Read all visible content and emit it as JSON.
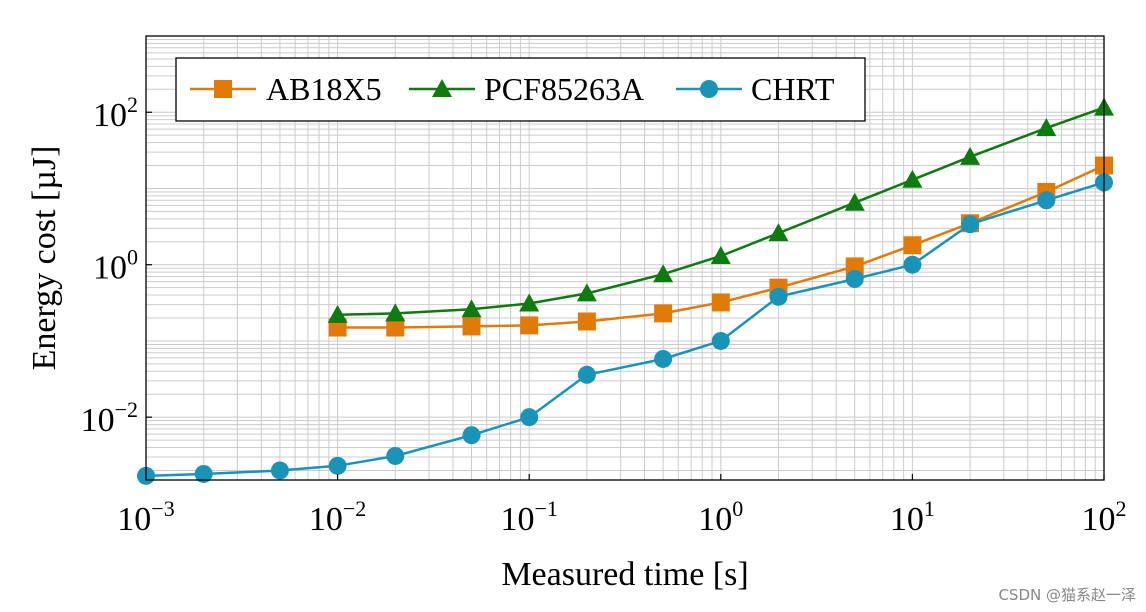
{
  "chart_data": {
    "type": "line",
    "scale": {
      "x": "log",
      "y": "log"
    },
    "xlabel": "Measured time [s]",
    "ylabel": "Energy cost [µJ]",
    "xlim": [
      0.001,
      100
    ],
    "ylim": [
      0.0015,
      1000
    ],
    "grid": true,
    "legend_position": "top-left",
    "x_ticks": [
      {
        "value": 0.001,
        "base": "10",
        "exp": "−3"
      },
      {
        "value": 0.01,
        "base": "10",
        "exp": "−2"
      },
      {
        "value": 0.1,
        "base": "10",
        "exp": "−1"
      },
      {
        "value": 1,
        "base": "10",
        "exp": "0"
      },
      {
        "value": 10,
        "base": "10",
        "exp": "1"
      },
      {
        "value": 100,
        "base": "10",
        "exp": "2"
      }
    ],
    "y_ticks": [
      {
        "value": 0.01,
        "base": "10",
        "exp": "−2"
      },
      {
        "value": 1,
        "base": "10",
        "exp": "0"
      },
      {
        "value": 100,
        "base": "10",
        "exp": "2"
      }
    ],
    "series": [
      {
        "name": "AB18X5",
        "color": "#e07b0a",
        "marker": "square",
        "x": [
          0.01,
          0.02,
          0.05,
          0.1,
          0.2,
          0.5,
          1,
          2,
          5,
          10,
          20,
          50,
          100
        ],
        "values": [
          0.15,
          0.15,
          0.155,
          0.16,
          0.18,
          0.23,
          0.32,
          0.5,
          0.95,
          1.8,
          3.5,
          9,
          20
        ]
      },
      {
        "name": "PCF85263A",
        "color": "#0f7a0f",
        "marker": "triangle",
        "x": [
          0.01,
          0.02,
          0.05,
          0.1,
          0.2,
          0.5,
          1,
          2,
          5,
          10,
          20,
          50,
          100
        ],
        "values": [
          0.22,
          0.23,
          0.26,
          0.31,
          0.42,
          0.75,
          1.3,
          2.6,
          6.5,
          13,
          26,
          62,
          115
        ]
      },
      {
        "name": "CHRT",
        "color": "#1a93b8",
        "marker": "circle",
        "x": [
          0.001,
          0.002,
          0.005,
          0.01,
          0.02,
          0.05,
          0.1,
          0.2,
          0.5,
          1,
          2,
          5,
          10,
          20,
          50,
          100
        ],
        "values": [
          0.0017,
          0.0018,
          0.002,
          0.0023,
          0.0031,
          0.0058,
          0.01,
          0.036,
          0.058,
          0.1,
          0.38,
          0.65,
          1.0,
          3.4,
          7,
          12
        ]
      }
    ]
  },
  "watermark": "CSDN @猫系赵一泽"
}
